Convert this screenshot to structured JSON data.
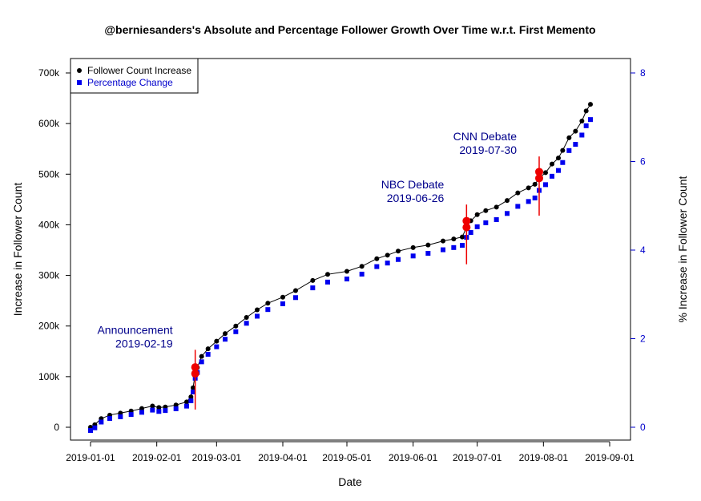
{
  "chart_data": {
    "type": "scatter",
    "title": "@berniesanders's Absolute and Percentage Follower Growth Over Time w.r.t. First Memento",
    "xlabel": "Date",
    "ylabel": "Increase in Follower Count",
    "y2label": "% Increase in Follower Count",
    "xlim": [
      "2019-01-01",
      "2019-09-01"
    ],
    "ylim": [
      0,
      700000
    ],
    "y2lim": [
      0,
      8
    ],
    "x_ticks": [
      "2019-01-01",
      "2019-02-01",
      "2019-03-01",
      "2019-04-01",
      "2019-05-01",
      "2019-06-01",
      "2019-07-01",
      "2019-08-01",
      "2019-09-01"
    ],
    "y_ticks": [
      0,
      100000,
      200000,
      300000,
      400000,
      500000,
      600000,
      700000
    ],
    "y_tick_labels": [
      "0",
      "100k",
      "200k",
      "300k",
      "400k",
      "500k",
      "600k",
      "700k"
    ],
    "y2_ticks": [
      0,
      2,
      4,
      6,
      8
    ],
    "y2_tick_labels": [
      "0",
      "2",
      "4",
      "6",
      "8"
    ],
    "legend": {
      "position": "top-left",
      "entries": [
        {
          "label": "Follower Count Increase",
          "color": "#000000",
          "marker": "circle"
        },
        {
          "label": "Percentage Change",
          "color": "#0000ee",
          "marker": "square"
        }
      ]
    },
    "series": [
      {
        "name": "Follower Count Increase",
        "color": "#000000",
        "marker": "circle",
        "x": [
          "2019-01-01",
          "2019-01-03",
          "2019-01-06",
          "2019-01-10",
          "2019-01-15",
          "2019-01-20",
          "2019-01-25",
          "2019-01-30",
          "2019-02-02",
          "2019-02-05",
          "2019-02-10",
          "2019-02-15",
          "2019-02-17",
          "2019-02-18",
          "2019-02-19",
          "2019-02-20",
          "2019-02-22",
          "2019-02-25",
          "2019-03-01",
          "2019-03-05",
          "2019-03-10",
          "2019-03-15",
          "2019-03-20",
          "2019-03-25",
          "2019-04-01",
          "2019-04-07",
          "2019-04-15",
          "2019-04-22",
          "2019-05-01",
          "2019-05-08",
          "2019-05-15",
          "2019-05-20",
          "2019-05-25",
          "2019-06-01",
          "2019-06-08",
          "2019-06-15",
          "2019-06-20",
          "2019-06-24",
          "2019-06-26",
          "2019-06-28",
          "2019-07-01",
          "2019-07-05",
          "2019-07-10",
          "2019-07-15",
          "2019-07-20",
          "2019-07-25",
          "2019-07-28",
          "2019-07-30",
          "2019-08-02",
          "2019-08-05",
          "2019-08-08",
          "2019-08-10",
          "2019-08-13",
          "2019-08-16",
          "2019-08-19",
          "2019-08-21",
          "2019-08-23"
        ],
        "y": [
          0,
          5000,
          17000,
          24000,
          28000,
          32000,
          37000,
          42000,
          39000,
          40000,
          44000,
          50000,
          60000,
          78000,
          106000,
          118000,
          140000,
          155000,
          170000,
          185000,
          200000,
          217000,
          232000,
          245000,
          257000,
          270000,
          290000,
          302000,
          308000,
          318000,
          333000,
          340000,
          348000,
          355000,
          360000,
          368000,
          372000,
          376000,
          395000,
          408000,
          420000,
          428000,
          435000,
          448000,
          463000,
          473000,
          480000,
          492000,
          503000,
          520000,
          532000,
          547000,
          572000,
          585000,
          605000,
          625000,
          638000
        ]
      },
      {
        "name": "Percentage Change",
        "color": "#0000ee",
        "marker": "square",
        "x": [
          "2019-01-01",
          "2019-01-03",
          "2019-01-06",
          "2019-01-10",
          "2019-01-15",
          "2019-01-20",
          "2019-01-25",
          "2019-01-30",
          "2019-02-02",
          "2019-02-05",
          "2019-02-10",
          "2019-02-15",
          "2019-02-17",
          "2019-02-18",
          "2019-02-19",
          "2019-02-20",
          "2019-02-22",
          "2019-02-25",
          "2019-03-01",
          "2019-03-05",
          "2019-03-10",
          "2019-03-15",
          "2019-03-20",
          "2019-03-25",
          "2019-04-01",
          "2019-04-07",
          "2019-04-15",
          "2019-04-22",
          "2019-05-01",
          "2019-05-08",
          "2019-05-15",
          "2019-05-20",
          "2019-05-25",
          "2019-06-01",
          "2019-06-08",
          "2019-06-15",
          "2019-06-20",
          "2019-06-24",
          "2019-06-26",
          "2019-06-28",
          "2019-07-01",
          "2019-07-05",
          "2019-07-10",
          "2019-07-15",
          "2019-07-20",
          "2019-07-25",
          "2019-07-28",
          "2019-07-30",
          "2019-08-02",
          "2019-08-05",
          "2019-08-08",
          "2019-08-10",
          "2019-08-13",
          "2019-08-16",
          "2019-08-19",
          "2019-08-21",
          "2019-08-23"
        ],
        "y": [
          0,
          0.06,
          0.19,
          0.27,
          0.31,
          0.36,
          0.41,
          0.46,
          0.43,
          0.45,
          0.49,
          0.55,
          0.67,
          0.87,
          1.18,
          1.31,
          1.55,
          1.72,
          1.89,
          2.06,
          2.23,
          2.42,
          2.58,
          2.73,
          2.86,
          3.0,
          3.22,
          3.35,
          3.42,
          3.53,
          3.7,
          3.78,
          3.86,
          3.94,
          4.0,
          4.08,
          4.13,
          4.18,
          4.36,
          4.47,
          4.6,
          4.69,
          4.76,
          4.9,
          5.06,
          5.17,
          5.25,
          5.42,
          5.55,
          5.74,
          5.87,
          6.05,
          6.32,
          6.46,
          6.67,
          6.88,
          7.02
        ]
      }
    ],
    "events": [
      {
        "label": "Announcement",
        "date_label": "2019-02-19",
        "x": "2019-02-19",
        "y": 106000,
        "line_range": [
          35000,
          153000
        ],
        "label_side": "left"
      },
      {
        "label": "NBC Debate",
        "date_label": "2019-06-26",
        "x": "2019-06-26",
        "y": 395000,
        "line_range": [
          322000,
          440000
        ],
        "label_side": "left"
      },
      {
        "label": "CNN Debate",
        "date_label": "2019-07-30",
        "x": "2019-07-30",
        "y": 492000,
        "line_range": [
          418000,
          535000
        ],
        "label_side": "left"
      }
    ],
    "colors": {
      "event": "#ee0000",
      "annotation": "#00008b",
      "right_axis": "#0000cc"
    }
  }
}
